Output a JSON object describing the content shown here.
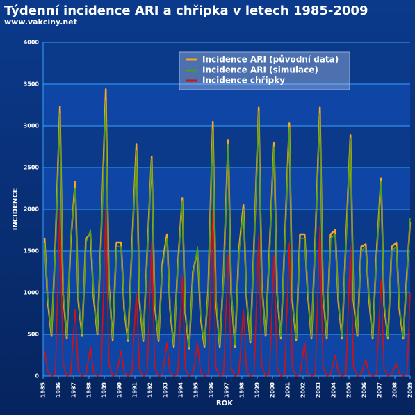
{
  "chart_data": {
    "type": "line",
    "title": "Týdenní incidence ARI a chřipka v letech 1985-2009",
    "subtitle": "www.vakciny.net",
    "x_label": "ROK",
    "y_label": "INCIDENCE",
    "x": [
      1985.1,
      1985.3,
      1985.55,
      1985.8,
      1986.1,
      1986.3,
      1986.55,
      1986.8,
      1987.1,
      1987.3,
      1987.55,
      1987.8,
      1988.1,
      1988.3,
      1988.55,
      1988.8,
      1989.1,
      1989.3,
      1989.55,
      1989.8,
      1990.1,
      1990.3,
      1990.55,
      1990.8,
      1991.1,
      1991.3,
      1991.55,
      1991.8,
      1992.1,
      1992.3,
      1992.55,
      1992.8,
      1993.1,
      1993.3,
      1993.55,
      1993.8,
      1994.1,
      1994.3,
      1994.55,
      1994.8,
      1995.1,
      1995.3,
      1995.55,
      1995.8,
      1996.1,
      1996.3,
      1996.55,
      1996.8,
      1997.1,
      1997.3,
      1997.55,
      1997.8,
      1998.1,
      1998.3,
      1998.55,
      1998.8,
      1999.1,
      1999.3,
      1999.55,
      1999.8,
      2000.1,
      2000.3,
      2000.55,
      2000.8,
      2001.1,
      2001.3,
      2001.55,
      2001.8,
      2002.1,
      2002.3,
      2002.55,
      2002.8,
      2003.1,
      2003.3,
      2003.55,
      2003.8,
      2004.1,
      2004.3,
      2004.55,
      2004.8,
      2005.1,
      2005.3,
      2005.55,
      2005.8,
      2006.1,
      2006.3,
      2006.55,
      2006.8,
      2007.1,
      2007.3,
      2007.55,
      2007.8,
      2008.1,
      2008.3,
      2008.55,
      2008.8,
      2009.0
    ],
    "series": [
      {
        "name": "Incidence ARI (původní data)",
        "color": "#f5a623",
        "values": [
          1650,
          900,
          480,
          1550,
          3230,
          1000,
          450,
          1600,
          2330,
          900,
          480,
          1650,
          1700,
          950,
          500,
          1700,
          3440,
          1100,
          430,
          1600,
          1600,
          800,
          420,
          1500,
          2780,
          900,
          420,
          1450,
          2630,
          850,
          420,
          1350,
          1700,
          800,
          350,
          1300,
          2130,
          750,
          330,
          1250,
          1500,
          700,
          350,
          1050,
          3050,
          900,
          350,
          1200,
          2830,
          1000,
          350,
          1500,
          2050,
          950,
          400,
          1600,
          3220,
          1100,
          480,
          1500,
          2800,
          1000,
          450,
          1600,
          3030,
          900,
          430,
          1700,
          1700,
          1000,
          450,
          1650,
          3220,
          1000,
          450,
          1700,
          1750,
          900,
          450,
          1600,
          2890,
          900,
          480,
          1550,
          1580,
          950,
          450,
          1450,
          2370,
          850,
          450,
          1550,
          1600,
          800,
          450,
          1250,
          1850
        ]
      },
      {
        "name": "Incidence ARI (simulace)",
        "color": "#4e9c1c",
        "values": [
          1600,
          950,
          500,
          1500,
          3150,
          1050,
          470,
          1650,
          2250,
          950,
          500,
          1600,
          1750,
          1000,
          520,
          1650,
          3300,
          1050,
          450,
          1550,
          1550,
          850,
          440,
          1450,
          2700,
          950,
          440,
          1400,
          2600,
          900,
          440,
          1300,
          1650,
          850,
          370,
          1250,
          2100,
          800,
          350,
          1200,
          1550,
          750,
          370,
          1000,
          2950,
          950,
          370,
          1150,
          2780,
          1050,
          370,
          1450,
          2000,
          1000,
          420,
          1550,
          3180,
          1050,
          500,
          1450,
          2750,
          1050,
          470,
          1550,
          2980,
          950,
          450,
          1650,
          1650,
          1050,
          470,
          1600,
          3150,
          1050,
          470,
          1650,
          1700,
          950,
          470,
          1550,
          2850,
          950,
          500,
          1500,
          1550,
          1000,
          470,
          1400,
          2330,
          900,
          470,
          1500,
          1550,
          850,
          470,
          1200,
          1900
        ]
      },
      {
        "name": "Incidence chřipky",
        "color": "#d41010",
        "values": [
          300,
          60,
          0,
          20,
          2000,
          150,
          0,
          20,
          800,
          60,
          0,
          20,
          350,
          40,
          0,
          20,
          2000,
          150,
          0,
          20,
          300,
          40,
          0,
          20,
          1000,
          80,
          0,
          20,
          1600,
          100,
          0,
          20,
          400,
          40,
          0,
          20,
          1200,
          80,
          0,
          20,
          400,
          40,
          0,
          20,
          2000,
          100,
          0,
          20,
          1450,
          100,
          0,
          20,
          800,
          60,
          0,
          20,
          1700,
          120,
          0,
          20,
          1450,
          100,
          0,
          20,
          1600,
          100,
          0,
          20,
          400,
          40,
          0,
          20,
          1800,
          120,
          0,
          20,
          250,
          40,
          0,
          20,
          1550,
          100,
          0,
          20,
          200,
          30,
          0,
          20,
          1150,
          80,
          0,
          20,
          150,
          30,
          0,
          20,
          1000
        ]
      }
    ],
    "xlim": [
      1985,
      2009
    ],
    "xticks": [
      1985,
      1986,
      1987,
      1988,
      1989,
      1990,
      1991,
      1992,
      1993,
      1994,
      1995,
      1996,
      1997,
      1998,
      1999,
      2000,
      2001,
      2002,
      2003,
      2004,
      2005,
      2006,
      2007,
      2008,
      2009
    ],
    "ylim": [
      0,
      4000
    ],
    "yticks": [
      0,
      500,
      1000,
      1500,
      2000,
      2500,
      3000,
      3500,
      4000
    ],
    "grid": true,
    "legend": "top-right"
  }
}
